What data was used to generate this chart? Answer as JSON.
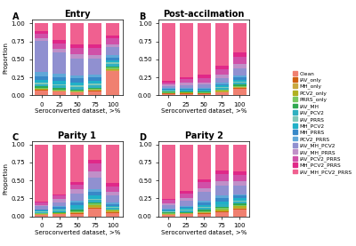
{
  "legend_labels": [
    "Clean",
    "IAV_only",
    "MH_only",
    "PCV2_only",
    "PRRS_only",
    "IAV_MH",
    "IAV_PCV2",
    "IAV_PRRS",
    "MH_PCV2",
    "MH_PRRS",
    "PCV2_PRRS",
    "IAV_MH_PCV2",
    "IAV_MH_PRRS",
    "IAV_PCV2_PRRS",
    "MH_PCV2_PRRS",
    "IAV_MH_PCV2_PRRS"
  ],
  "colors": [
    "#f08080",
    "#e07020",
    "#c8a840",
    "#b8b030",
    "#80c860",
    "#40a860",
    "#38b8c8",
    "#88ccc0",
    "#30b8c8",
    "#4090c8",
    "#68acd8",
    "#8888cc",
    "#c090c8",
    "#d860b0",
    "#e03090",
    "#f060a0"
  ],
  "x_labels": [
    "0",
    "25",
    "50",
    "75",
    "100"
  ],
  "subplot_titles": [
    "Entry",
    "Post-accilmation",
    "Parity 1",
    "Parity 2"
  ],
  "panel_labels": [
    "A",
    "B",
    "C",
    "D"
  ],
  "xlabel": "Seroconverted dataset, >%",
  "ylabel": "Proportion",
  "panels": {
    "Entry": [
      [
        0.06,
        0.005,
        0.01,
        0.005,
        0.01,
        0.02,
        0.03,
        0.02,
        0.03,
        0.05,
        0.05,
        0.38,
        0.04,
        0.05,
        0.03,
        0.1
      ],
      [
        0.05,
        0.005,
        0.01,
        0.005,
        0.01,
        0.02,
        0.04,
        0.02,
        0.04,
        0.06,
        0.05,
        0.3,
        0.05,
        0.08,
        0.04,
        0.24
      ],
      [
        0.04,
        0.005,
        0.01,
        0.005,
        0.01,
        0.02,
        0.04,
        0.02,
        0.04,
        0.06,
        0.05,
        0.25,
        0.06,
        0.1,
        0.04,
        0.32
      ],
      [
        0.06,
        0.005,
        0.01,
        0.005,
        0.01,
        0.02,
        0.04,
        0.02,
        0.04,
        0.05,
        0.04,
        0.22,
        0.06,
        0.1,
        0.05,
        0.3
      ],
      [
        0.35,
        0.005,
        0.01,
        0.01,
        0.02,
        0.02,
        0.04,
        0.02,
        0.03,
        0.04,
        0.03,
        0.12,
        0.04,
        0.08,
        0.04,
        0.18
      ]
    ],
    "Post-accilmation": [
      [
        0.02,
        0.005,
        0.005,
        0.005,
        0.005,
        0.01,
        0.01,
        0.01,
        0.01,
        0.01,
        0.01,
        0.03,
        0.02,
        0.03,
        0.02,
        0.8
      ],
      [
        0.02,
        0.005,
        0.005,
        0.005,
        0.005,
        0.01,
        0.01,
        0.01,
        0.01,
        0.01,
        0.01,
        0.04,
        0.03,
        0.05,
        0.03,
        0.73
      ],
      [
        0.02,
        0.005,
        0.005,
        0.005,
        0.005,
        0.01,
        0.01,
        0.01,
        0.01,
        0.01,
        0.01,
        0.05,
        0.03,
        0.06,
        0.04,
        0.71
      ],
      [
        0.04,
        0.005,
        0.01,
        0.01,
        0.01,
        0.01,
        0.02,
        0.01,
        0.02,
        0.02,
        0.02,
        0.07,
        0.04,
        0.08,
        0.05,
        0.59
      ],
      [
        0.09,
        0.01,
        0.01,
        0.01,
        0.01,
        0.02,
        0.03,
        0.01,
        0.03,
        0.03,
        0.03,
        0.1,
        0.05,
        0.1,
        0.06,
        0.41
      ]
    ],
    "Parity 1": [
      [
        0.02,
        0.005,
        0.005,
        0.005,
        0.005,
        0.01,
        0.01,
        0.01,
        0.01,
        0.01,
        0.01,
        0.04,
        0.02,
        0.03,
        0.02,
        0.78
      ],
      [
        0.03,
        0.005,
        0.005,
        0.005,
        0.005,
        0.01,
        0.02,
        0.01,
        0.02,
        0.02,
        0.01,
        0.06,
        0.04,
        0.05,
        0.02,
        0.69
      ],
      [
        0.04,
        0.005,
        0.01,
        0.01,
        0.01,
        0.02,
        0.02,
        0.01,
        0.03,
        0.04,
        0.02,
        0.1,
        0.06,
        0.07,
        0.04,
        0.52
      ],
      [
        0.1,
        0.01,
        0.01,
        0.02,
        0.02,
        0.02,
        0.03,
        0.01,
        0.04,
        0.05,
        0.03,
        0.14,
        0.08,
        0.1,
        0.05,
        0.19
      ],
      [
        0.05,
        0.01,
        0.01,
        0.01,
        0.01,
        0.01,
        0.02,
        0.01,
        0.02,
        0.02,
        0.02,
        0.1,
        0.05,
        0.08,
        0.04,
        0.54
      ]
    ],
    "Parity 2": [
      [
        0.02,
        0.005,
        0.005,
        0.005,
        0.005,
        0.01,
        0.01,
        0.01,
        0.01,
        0.01,
        0.01,
        0.05,
        0.02,
        0.04,
        0.02,
        0.7
      ],
      [
        0.03,
        0.005,
        0.005,
        0.005,
        0.005,
        0.01,
        0.02,
        0.01,
        0.02,
        0.02,
        0.01,
        0.07,
        0.04,
        0.06,
        0.03,
        0.62
      ],
      [
        0.04,
        0.005,
        0.01,
        0.01,
        0.01,
        0.02,
        0.03,
        0.01,
        0.03,
        0.04,
        0.02,
        0.12,
        0.06,
        0.08,
        0.04,
        0.5
      ],
      [
        0.06,
        0.01,
        0.01,
        0.02,
        0.02,
        0.02,
        0.03,
        0.01,
        0.04,
        0.05,
        0.03,
        0.14,
        0.07,
        0.1,
        0.05,
        0.38
      ],
      [
        0.1,
        0.01,
        0.01,
        0.02,
        0.02,
        0.02,
        0.03,
        0.01,
        0.03,
        0.04,
        0.02,
        0.12,
        0.06,
        0.09,
        0.05,
        0.37
      ]
    ]
  }
}
